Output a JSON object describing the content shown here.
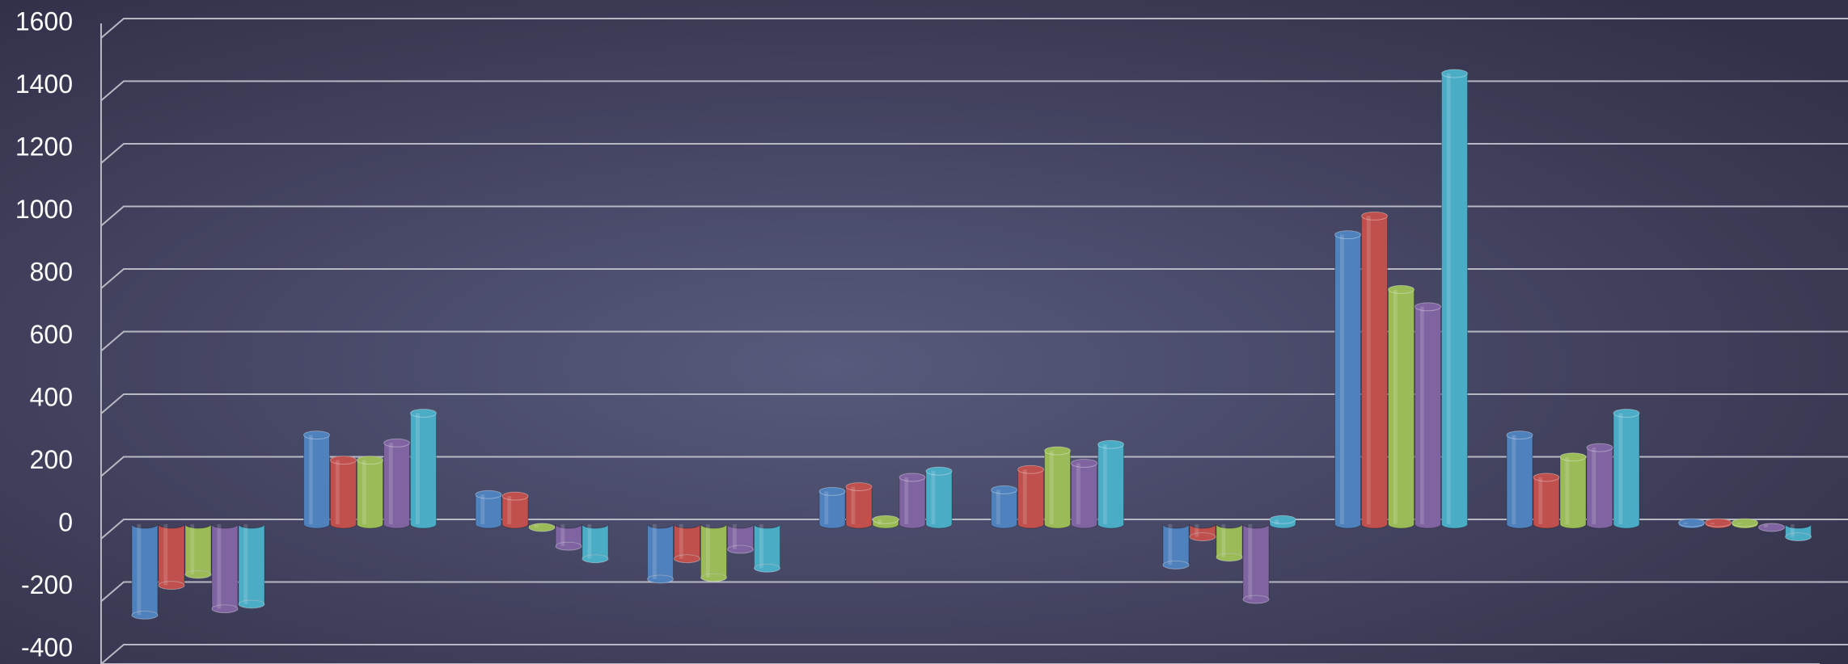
{
  "chart_data": {
    "type": "bar",
    "categories": [
      null,
      null,
      null,
      null,
      null,
      null,
      null,
      null,
      null,
      null
    ],
    "series": [
      {
        "color": "#4f81bd",
        "values": [
          -290,
          285,
          95,
          -175,
          105,
          110,
          -130,
          925,
          285,
          5
        ]
      },
      {
        "color": "#c0504d",
        "values": [
          -195,
          205,
          90,
          -110,
          120,
          175,
          -40,
          985,
          150,
          5
        ]
      },
      {
        "color": "#9bbb59",
        "values": [
          -160,
          205,
          -10,
          -170,
          15,
          235,
          -105,
          750,
          215,
          5
        ]
      },
      {
        "color": "#8064a2",
        "values": [
          -270,
          260,
          -70,
          -80,
          150,
          195,
          -240,
          695,
          245,
          -10
        ]
      },
      {
        "color": "#4bacc6",
        "values": [
          -255,
          355,
          -110,
          -140,
          170,
          255,
          15,
          1440,
          355,
          -40
        ]
      }
    ],
    "ylim": [
      -400,
      1600
    ],
    "yticks": [
      -400,
      -200,
      0,
      200,
      400,
      600,
      800,
      1000,
      1200,
      1400,
      1600
    ],
    "grid": true
  }
}
